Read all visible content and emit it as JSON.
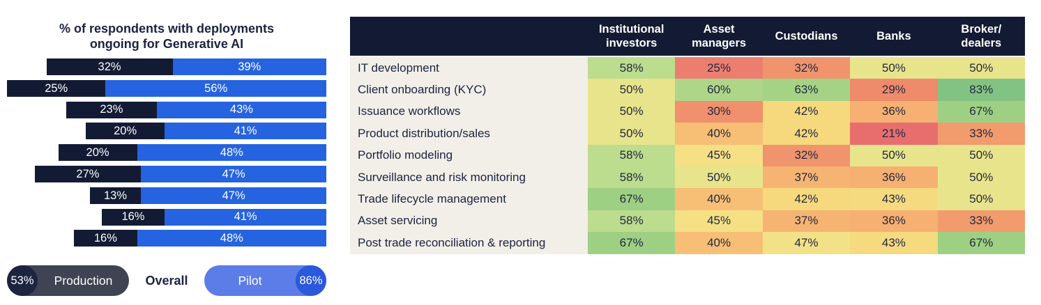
{
  "chart": {
    "title_lines": [
      "% of respondents with deployments",
      "ongoing for Generative AI"
    ],
    "legend": {
      "production_pct": "53%",
      "production_label": "Production",
      "overall_label": "Overall",
      "pilot_label": "Pilot",
      "pilot_pct": "86%"
    }
  },
  "colors": {
    "navy": "#131b34",
    "title_text": "#1b2340",
    "production_bar": "#131b34",
    "pilot_bar": "#2563e0",
    "legend_production_pill": "#3f4352",
    "legend_production_badge": "#1c2440",
    "legend_pilot_pill": "#5c7ce7",
    "legend_pilot_badge": "#2b58dc",
    "label_column_bg": "#f1efe8",
    "header_text": "#ffffff"
  },
  "chart_data": [
    {
      "type": "bar",
      "subtype": "horizontal-stacked-right-aligned",
      "title": "% of respondents with deployments ongoing for Generative AI",
      "series": [
        {
          "name": "Production",
          "values": [
            32,
            25,
            23,
            20,
            20,
            27,
            13,
            16,
            16
          ]
        },
        {
          "name": "Pilot",
          "values": [
            39,
            56,
            43,
            41,
            48,
            47,
            47,
            41,
            48
          ]
        }
      ],
      "value_suffix": "%",
      "legend": {
        "production_overall": "53%",
        "pilot_overall": "86%",
        "center_label": "Overall"
      },
      "axis_labels_shown": false,
      "grid": false
    },
    {
      "type": "heatmap",
      "columns": [
        "Institutional\ninvestors",
        "Asset\nmanagers",
        "Custodians",
        "Banks",
        "Broker/\ndealers"
      ],
      "rows": [
        {
          "label": "IT development",
          "values": [
            58,
            25,
            32,
            50,
            50
          ]
        },
        {
          "label": "Client onboarding (KYC)",
          "values": [
            50,
            60,
            63,
            29,
            83
          ]
        },
        {
          "label": "Issuance workflows",
          "values": [
            50,
            30,
            42,
            36,
            67
          ]
        },
        {
          "label": "Product distribution/sales",
          "values": [
            50,
            40,
            42,
            21,
            33
          ]
        },
        {
          "label": "Portfolio modeling",
          "values": [
            58,
            45,
            32,
            50,
            50
          ]
        },
        {
          "label": "Surveillance and risk monitoring",
          "values": [
            58,
            50,
            37,
            36,
            50
          ]
        },
        {
          "label": "Trade lifecycle management",
          "values": [
            67,
            40,
            42,
            43,
            50
          ]
        },
        {
          "label": "Asset servicing",
          "values": [
            58,
            45,
            37,
            36,
            33
          ]
        },
        {
          "label": "Post trade reconciliation & reporting",
          "values": [
            67,
            40,
            47,
            43,
            67
          ]
        }
      ],
      "value_suffix": "%",
      "color_scale": {
        "21": "#e86e6e",
        "25": "#ec7e70",
        "29": "#ef8a6a",
        "30": "#f0906c",
        "32": "#f0946d",
        "33": "#f29b6d",
        "36": "#f6b072",
        "37": "#f6b473",
        "40": "#f7bf75",
        "42": "#f6d87d",
        "43": "#f5da7f",
        "45": "#f5e085",
        "47": "#f2e187",
        "50": "#e8e48b",
        "58": "#bcdc8e",
        "60": "#aed689",
        "63": "#a5d385",
        "67": "#9ed083",
        "83": "#82c383"
      }
    }
  ]
}
